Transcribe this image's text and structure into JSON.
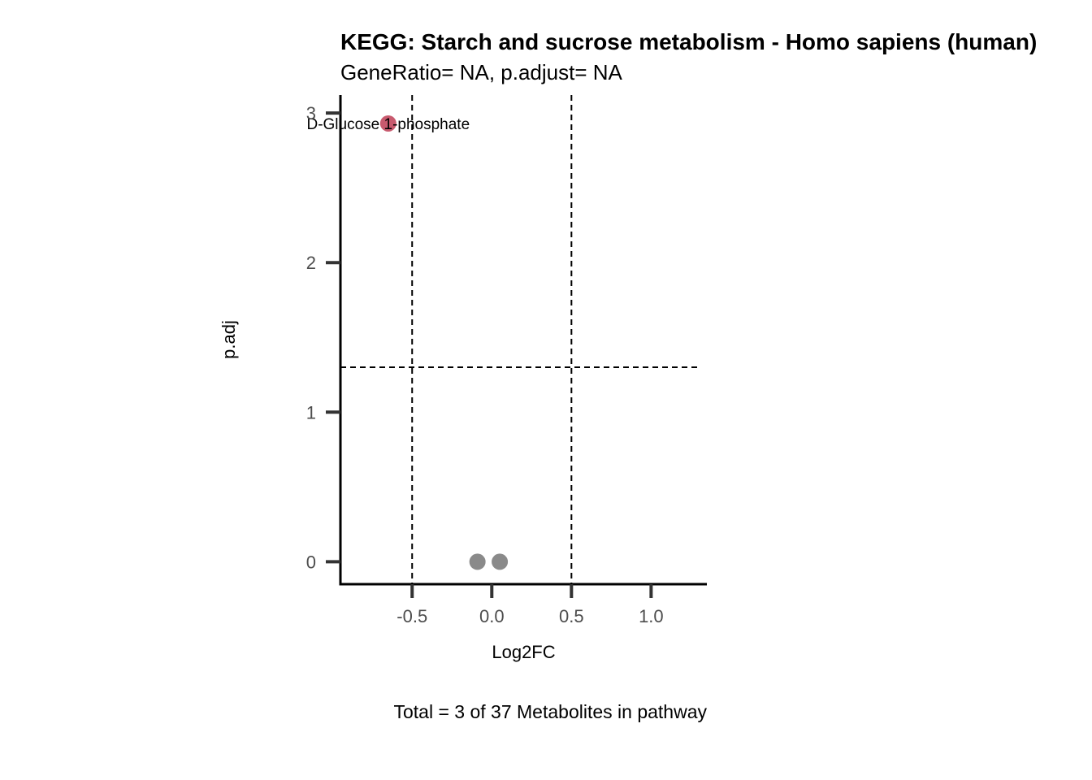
{
  "chart_data": {
    "type": "scatter",
    "title": "KEGG: Starch and sucrose metabolism - Homo sapiens (human)",
    "subtitle": "GeneRatio= NA, p.adjust= NA",
    "xlabel": "Log2FC",
    "ylabel": "p.adj",
    "caption": "Total = 3 of 37 Metabolites in pathway",
    "xlim": [
      -0.95,
      1.35
    ],
    "ylim": [
      -0.15,
      3.12
    ],
    "x_ticks": [
      -0.5,
      0.0,
      0.5,
      1.0
    ],
    "x_tick_labels": [
      "-0.5",
      "0.0",
      "0.5",
      "1.0"
    ],
    "y_ticks": [
      0,
      1,
      2,
      3
    ],
    "y_tick_labels": [
      "0",
      "1",
      "2",
      "3"
    ],
    "vertical_thresholds": [
      -0.5,
      0.5
    ],
    "horizontal_threshold": 1.3,
    "grid": false,
    "points": [
      {
        "x": -0.65,
        "y": 2.93,
        "color": "#c85a6e",
        "label": "D-Glucose 1-phosphate"
      },
      {
        "x": -0.09,
        "y": 0.0,
        "color": "#8a8a8a",
        "label": ""
      },
      {
        "x": 0.05,
        "y": 0.0,
        "color": "#8a8a8a",
        "label": ""
      }
    ]
  }
}
